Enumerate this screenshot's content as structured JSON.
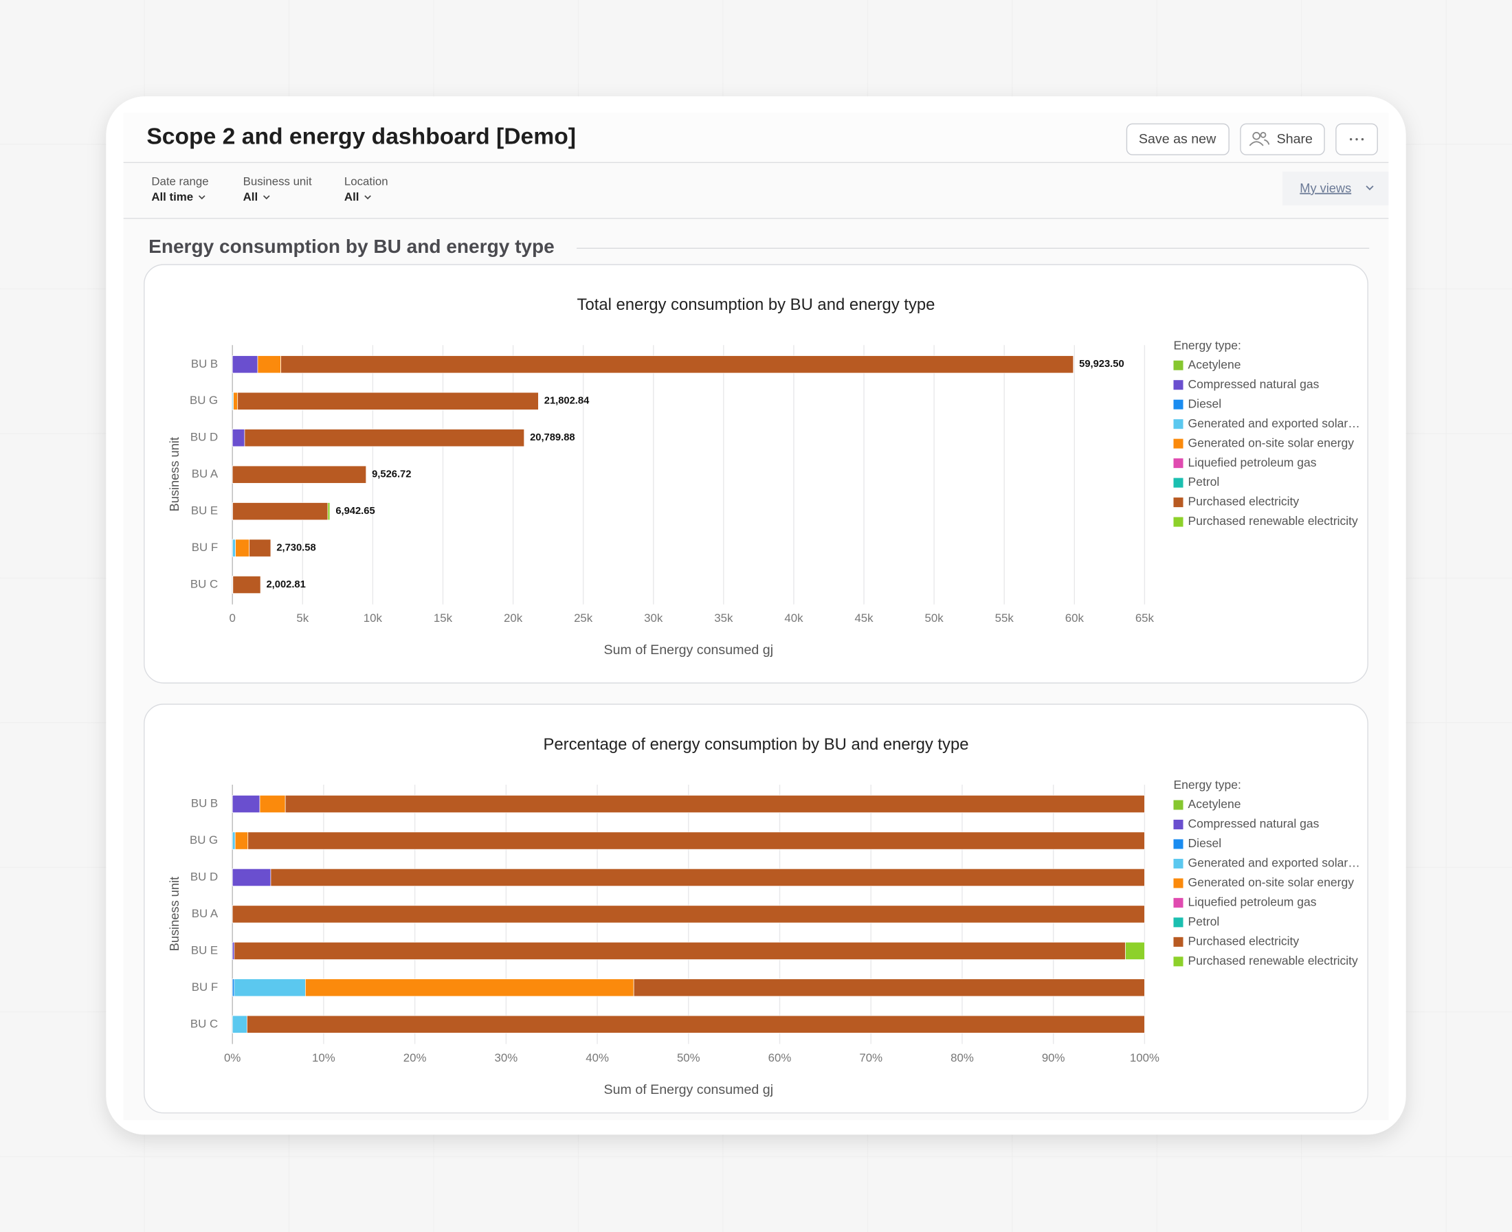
{
  "page": {
    "title": "Scope 2 and energy dashboard [Demo]",
    "buttons": [
      "Save as new",
      "Share"
    ],
    "filters": [
      {
        "label": "Date range",
        "value": "All time"
      },
      {
        "label": "Business unit",
        "value": "All"
      },
      {
        "label": "Location",
        "value": "All"
      }
    ],
    "my_views": "My views",
    "section_title": "Energy consumption by BU and energy type"
  },
  "chart_data": [
    {
      "type": "bar",
      "orientation": "horizontal",
      "stacked": true,
      "title": "Total energy consumption by BU and energy type",
      "x_label": "Sum of Energy consumed gj",
      "y_label": "Business unit",
      "legend_title": "Energy type:",
      "legend": "right",
      "grid": true,
      "categories": [
        "BU B",
        "BU G",
        "BU D",
        "BU A",
        "BU E",
        "BU F",
        "BU C"
      ],
      "xlim": [
        0,
        65000
      ],
      "xticks": [
        0,
        {
          "value": 5000,
          "label": "5k"
        },
        {
          "value": 10000,
          "label": "10k"
        },
        {
          "value": 15000,
          "label": "15k"
        },
        {
          "value": 20000,
          "label": "20k"
        },
        {
          "value": 25000,
          "label": "25k"
        },
        {
          "value": 30000,
          "label": "30k"
        },
        {
          "value": 35000,
          "label": "35k"
        },
        {
          "value": 40000,
          "label": "40k"
        },
        {
          "value": 45000,
          "label": "45k"
        },
        {
          "value": 50000,
          "label": "50k"
        },
        {
          "value": 55000,
          "label": "55k"
        },
        {
          "value": 60000,
          "label": "60k"
        },
        {
          "value": 65000,
          "label": "65k"
        }
      ],
      "series": [
        {
          "name": "Acetylene",
          "color": "#86c72f",
          "values": [
            0,
            0,
            0,
            0,
            0,
            0,
            0
          ]
        },
        {
          "name": "Compressed natural gas",
          "color": "#6a4fcf",
          "values": [
            1800,
            0,
            870,
            0,
            14,
            0,
            0
          ]
        },
        {
          "name": "Diesel",
          "color": "#1a8cf0",
          "values": [
            0,
            0,
            0,
            0,
            0,
            5,
            0
          ]
        },
        {
          "name": "Generated and exported solar…",
          "color": "#5bc8ef",
          "values": [
            0,
            70,
            0,
            0,
            0,
            213,
            32
          ]
        },
        {
          "name": "Generated on-site solar energy",
          "color": "#fb8a0c",
          "values": [
            1650,
            300,
            0,
            0,
            0,
            983,
            0
          ]
        },
        {
          "name": "Liquefied petroleum gas",
          "color": "#e04bb0",
          "values": [
            0,
            0,
            0,
            0,
            0,
            0,
            0
          ]
        },
        {
          "name": "Petrol",
          "color": "#1bbfb0",
          "values": [
            0,
            0,
            0,
            0,
            0,
            0,
            0
          ]
        },
        {
          "name": "Purchased electricity",
          "color": "#b85a22",
          "values": [
            56473.5,
            21432.84,
            19919.88,
            9526.72,
            6782.65,
            1529.58,
            1970.81
          ]
        },
        {
          "name": "Purchased renewable electricity",
          "color": "#8dd12a",
          "values": [
            0,
            0,
            0,
            0,
            146,
            0,
            0
          ]
        }
      ],
      "totals": [
        59923.5,
        21802.84,
        20789.88,
        9526.72,
        6942.65,
        2730.58,
        2002.81
      ],
      "total_labels": [
        "59,923.50",
        "21,802.84",
        "20,789.88",
        "9,526.72",
        "6,942.65",
        "2,730.58",
        "2,002.81"
      ]
    },
    {
      "type": "bar",
      "orientation": "horizontal",
      "stacked": true,
      "title": "Percentage of energy consumption by BU and energy type",
      "x_label": "Sum of Energy consumed gj",
      "y_label": "Business unit",
      "legend_title": "Energy type:",
      "legend": "right",
      "grid": true,
      "categories": [
        "BU B",
        "BU G",
        "BU D",
        "BU A",
        "BU E",
        "BU F",
        "BU C"
      ],
      "xlim": [
        0,
        100
      ],
      "xticks": [
        {
          "value": 0,
          "label": "0%"
        },
        {
          "value": 10,
          "label": "10%"
        },
        {
          "value": 20,
          "label": "20%"
        },
        {
          "value": 30,
          "label": "30%"
        },
        {
          "value": 40,
          "label": "40%"
        },
        {
          "value": 50,
          "label": "50%"
        },
        {
          "value": 60,
          "label": "60%"
        },
        {
          "value": 70,
          "label": "70%"
        },
        {
          "value": 80,
          "label": "80%"
        },
        {
          "value": 90,
          "label": "90%"
        },
        {
          "value": 100,
          "label": "100%"
        }
      ],
      "series": [
        {
          "name": "Acetylene",
          "color": "#86c72f",
          "values": [
            0,
            0,
            0,
            0,
            0,
            0,
            0
          ]
        },
        {
          "name": "Compressed natural gas",
          "color": "#6a4fcf",
          "values": [
            3.0,
            0,
            4.2,
            0,
            0.2,
            0,
            0
          ]
        },
        {
          "name": "Diesel",
          "color": "#1a8cf0",
          "values": [
            0,
            0,
            0,
            0,
            0,
            0.2,
            0
          ]
        },
        {
          "name": "Generated and exported solar…",
          "color": "#5bc8ef",
          "values": [
            0,
            0.3,
            0,
            0,
            0,
            7.8,
            1.6
          ]
        },
        {
          "name": "Generated on-site solar energy",
          "color": "#fb8a0c",
          "values": [
            2.8,
            1.4,
            0,
            0,
            0,
            36.0,
            0
          ]
        },
        {
          "name": "Liquefied petroleum gas",
          "color": "#e04bb0",
          "values": [
            0,
            0,
            0,
            0,
            0,
            0,
            0
          ]
        },
        {
          "name": "Petrol",
          "color": "#1bbfb0",
          "values": [
            0,
            0,
            0,
            0,
            0,
            0,
            0
          ]
        },
        {
          "name": "Purchased electricity",
          "color": "#b85a22",
          "values": [
            94.2,
            98.3,
            95.8,
            100,
            97.7,
            56.0,
            98.4
          ]
        },
        {
          "name": "Purchased renewable electricity",
          "color": "#8dd12a",
          "values": [
            0,
            0,
            0,
            0,
            2.1,
            0,
            0
          ]
        }
      ]
    }
  ]
}
